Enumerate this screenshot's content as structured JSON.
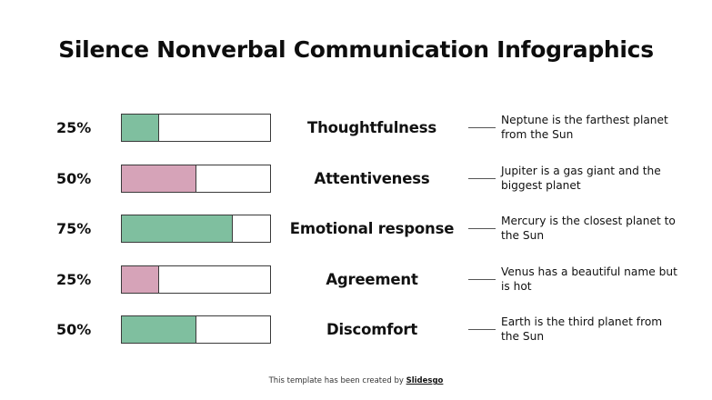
{
  "slide": {
    "title": "Silence Nonverbal Communication Infographics",
    "footer_text": "This template has been created by ",
    "footer_link": "Slidesgo"
  },
  "colors": {
    "green": "#7fbf9f",
    "pink": "#d6a3b8",
    "border": "#3a3a3a",
    "text": "#111111"
  },
  "rows": [
    {
      "percent_label": "25%",
      "value": 25,
      "color": "#7fbf9f",
      "label": "Thoughtfulness",
      "description": "Neptune is the farthest planet from the Sun"
    },
    {
      "percent_label": "50%",
      "value": 50,
      "color": "#d6a3b8",
      "label": "Attentiveness",
      "description": "Jupiter is a gas giant and the biggest planet"
    },
    {
      "percent_label": "75%",
      "value": 75,
      "color": "#7fbf9f",
      "label": "Emotional response",
      "description": "Mercury is the closest planet to the Sun"
    },
    {
      "percent_label": "25%",
      "value": 25,
      "color": "#d6a3b8",
      "label": "Agreement",
      "description": "Venus has a beautiful name but is hot"
    },
    {
      "percent_label": "50%",
      "value": 50,
      "color": "#7fbf9f",
      "label": "Discomfort",
      "description": "Earth is the third planet from the Sun"
    }
  ],
  "chart_data": {
    "type": "bar",
    "orientation": "horizontal",
    "title": "Silence Nonverbal Communication Infographics",
    "categories": [
      "Thoughtfulness",
      "Attentiveness",
      "Emotional response",
      "Agreement",
      "Discomfort"
    ],
    "values": [
      25,
      50,
      75,
      25,
      50
    ],
    "unit": "%",
    "xlim": [
      0,
      100
    ],
    "bar_colors": [
      "#7fbf9f",
      "#d6a3b8",
      "#7fbf9f",
      "#d6a3b8",
      "#7fbf9f"
    ],
    "annotations": [
      "Neptune is the farthest planet from the Sun",
      "Jupiter is a gas giant and the biggest planet",
      "Mercury is the closest planet to the Sun",
      "Venus has a beautiful name but is hot",
      "Earth is the third planet from the Sun"
    ],
    "grid": false,
    "legend": null
  }
}
